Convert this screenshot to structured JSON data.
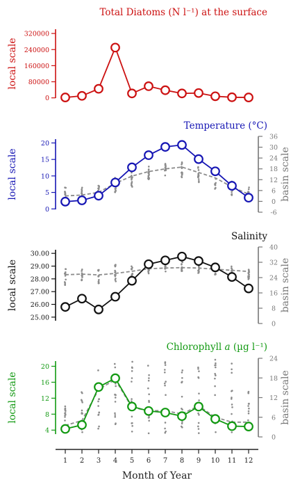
{
  "x_axis": {
    "label": "Month of Year",
    "ticks": [
      "1",
      "2",
      "3",
      "4",
      "5",
      "6",
      "7",
      "8",
      "9",
      "10",
      "11",
      "12"
    ],
    "xlim": [
      0.5,
      12.5
    ]
  },
  "chart_data": [
    {
      "id": "diatoms",
      "type": "line",
      "title": "Total Diatoms (N l⁻¹) at the surface",
      "color": "#cc1111",
      "x": [
        1,
        2,
        3,
        4,
        5,
        6,
        7,
        8,
        9,
        10,
        11,
        12
      ],
      "left_axis": {
        "label": "local scale",
        "ylim": [
          -15000,
          355000
        ],
        "ticks": [
          0,
          80000,
          160000,
          240000,
          320000
        ],
        "tick_labels": [
          "0",
          "80000",
          "160000",
          "240000",
          "320000"
        ]
      },
      "series": [
        {
          "values": [
            2000,
            10000,
            45000,
            250000,
            22000,
            58000,
            38000,
            22000,
            24000,
            8000,
            3000,
            2000
          ]
        }
      ]
    },
    {
      "id": "temperature",
      "type": "line",
      "title": "Temperature (°C)",
      "color": "#1616b4",
      "x": [
        1,
        2,
        3,
        4,
        5,
        6,
        7,
        8,
        9,
        10,
        11,
        12
      ],
      "left_axis": {
        "label": "local scale",
        "ylim": [
          -1,
          22
        ],
        "ticks": [
          0,
          5,
          10,
          15,
          20
        ],
        "tick_labels": [
          "0",
          "5",
          "10",
          "15",
          "20"
        ]
      },
      "right_axis": {
        "label": "basin scale",
        "ylim": [
          -6,
          36
        ],
        "ticks": [
          -6,
          0,
          6,
          12,
          18,
          24,
          30,
          36
        ],
        "tick_labels": [
          "-6",
          "0",
          "6",
          "12",
          "18",
          "24",
          "30",
          "36"
        ]
      },
      "series": [
        {
          "axis": "left",
          "values": [
            2.2,
            2.6,
            4.0,
            8.0,
            12.6,
            16.3,
            18.8,
            19.4,
            15.1,
            11.4,
            7.0,
            3.4
          ]
        },
        {
          "axis": "right",
          "style": "dashed",
          "values": [
            3,
            3.5,
            5,
            10,
            14,
            16.5,
            18,
            19,
            16,
            13,
            8,
            4
          ]
        }
      ],
      "scatter": [
        {
          "axis": "right",
          "ranges": [
            [
              0,
              8
            ],
            [
              0,
              10
            ],
            [
              2,
              9
            ],
            [
              5,
              14
            ],
            [
              8,
              18
            ],
            [
              12,
              20
            ],
            [
              14,
              21
            ],
            [
              13,
              22
            ],
            [
              10,
              20
            ],
            [
              6,
              17
            ],
            [
              3,
              12
            ],
            [
              1,
              8
            ]
          ]
        }
      ]
    },
    {
      "id": "salinity",
      "type": "line",
      "title": "Salinity",
      "color": "#111111",
      "x": [
        1,
        2,
        3,
        4,
        5,
        6,
        7,
        8,
        9,
        10,
        11,
        12
      ],
      "left_axis": {
        "label": "local scale",
        "ylim": [
          24.5,
          30.5
        ],
        "ticks": [
          25.0,
          26.0,
          27.0,
          28.0,
          29.0,
          30.0
        ],
        "tick_labels": [
          "25.00",
          "26.00",
          "27.00",
          "28.00",
          "29.00",
          "30.00"
        ]
      },
      "right_axis": {
        "label": "basin scale",
        "ylim": [
          0,
          40
        ],
        "ticks": [
          0,
          8,
          16,
          24,
          32,
          40
        ],
        "tick_labels": [
          "0",
          "8",
          "16",
          "24",
          "32",
          "40"
        ]
      },
      "series": [
        {
          "axis": "left",
          "values": [
            25.8,
            26.45,
            25.6,
            26.6,
            27.85,
            29.15,
            29.45,
            29.75,
            29.4,
            28.9,
            28.15,
            27.25
          ]
        },
        {
          "axis": "right",
          "style": "dashed",
          "values": [
            25.5,
            25.8,
            25.4,
            26.2,
            27.3,
            28.6,
            29.0,
            29.2,
            29.0,
            28.4,
            27.8,
            27.2
          ]
        }
      ],
      "scatter": [
        {
          "axis": "right",
          "ranges": [
            [
              20,
              30
            ],
            [
              22,
              29
            ],
            [
              21,
              30
            ],
            [
              22,
              31
            ],
            [
              24,
              31
            ],
            [
              26,
              32
            ],
            [
              27,
              32
            ],
            [
              27,
              33
            ],
            [
              26,
              32
            ],
            [
              25,
              31
            ],
            [
              24,
              30
            ],
            [
              23,
              29
            ]
          ]
        }
      ]
    },
    {
      "id": "chlorophyll",
      "type": "line",
      "title": "Chlorophyll a (µg l⁻¹)",
      "title_plain": "Chlorophyll ",
      "title_italic": "a",
      "title_unit": " (µg l⁻¹)",
      "color": "#119911",
      "x": [
        1,
        2,
        3,
        4,
        5,
        6,
        7,
        8,
        9,
        10,
        11,
        12
      ],
      "left_axis": {
        "label": "local scale",
        "ylim": [
          2.3,
          22
        ],
        "ticks": [
          4,
          8,
          12,
          16,
          20
        ],
        "tick_labels": [
          "4",
          "8",
          "12",
          "16",
          "20"
        ]
      },
      "right_axis": {
        "label": "basin scale",
        "ylim": [
          0,
          24
        ],
        "ticks": [
          0,
          6,
          12,
          18,
          24
        ],
        "tick_labels": [
          "0",
          "6",
          "12",
          "18",
          "24"
        ]
      },
      "series": [
        {
          "axis": "left",
          "values": [
            4.3,
            5.3,
            14.8,
            17.0,
            9.9,
            8.8,
            8.4,
            7.5,
            9.9,
            6.8,
            5.0,
            4.9
          ]
        },
        {
          "axis": "right",
          "style": "dashed",
          "values": [
            3.5,
            5,
            14.5,
            17.5,
            9,
            8,
            8,
            7,
            9.5,
            6,
            4.5,
            4.5
          ]
        }
      ],
      "scatter": [
        {
          "axis": "right",
          "ranges": [
            [
              1,
              10
            ],
            [
              1,
              14
            ],
            [
              2,
              22
            ],
            [
              2,
              23
            ],
            [
              1,
              24
            ],
            [
              1,
              22
            ],
            [
              1,
              23
            ],
            [
              1,
              22
            ],
            [
              1,
              22
            ],
            [
              1,
              24
            ],
            [
              1,
              23
            ],
            [
              1,
              14
            ]
          ]
        }
      ]
    }
  ]
}
